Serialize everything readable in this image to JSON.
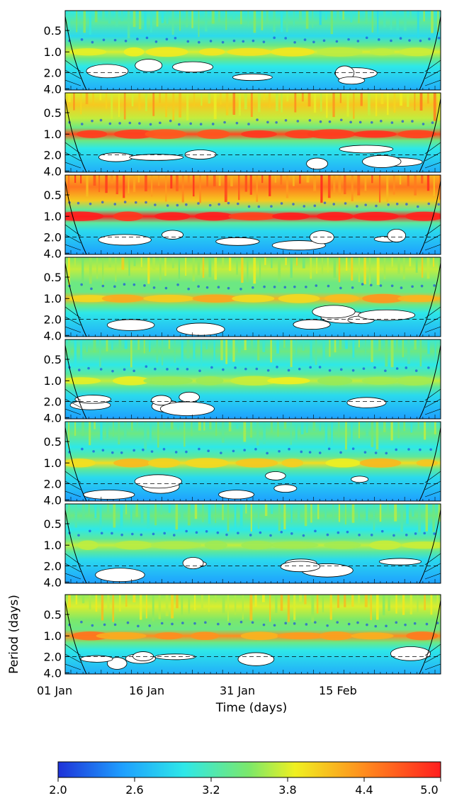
{
  "chart_data": {
    "type": "heatmap",
    "title": "",
    "xlabel": "Time (days)",
    "ylabel": "Period (days)",
    "x_ticks": [
      "01 Jan",
      "16 Jan",
      "31 Jan",
      "15 Feb"
    ],
    "y_ticks": [
      "0.5",
      "1.0",
      "2.0",
      "4.0"
    ],
    "y_scale": "log",
    "colorbar": {
      "ticks": [
        "2.0",
        "2.6",
        "3.2",
        "3.8",
        "4.4",
        "5.0"
      ],
      "range": [
        2.0,
        5.0
      ],
      "colors": [
        "#1e32d8",
        "#1ea0ff",
        "#2ee8e8",
        "#7ce86a",
        "#f0f020",
        "#ff8c1e",
        "#ff1e1e"
      ]
    },
    "panels": [
      {
        "daily_band_level": 3.9,
        "subdaily_level": 3.3,
        "background_level": 3.0
      },
      {
        "daily_band_level": 4.8,
        "subdaily_level": 4.2,
        "background_level": 3.0
      },
      {
        "daily_band_level": 5.0,
        "subdaily_level": 4.6,
        "background_level": 2.9
      },
      {
        "daily_band_level": 4.3,
        "subdaily_level": 3.8,
        "background_level": 3.0
      },
      {
        "daily_band_level": 3.8,
        "subdaily_level": 3.4,
        "background_level": 2.9
      },
      {
        "daily_band_level": 4.1,
        "subdaily_level": 3.4,
        "background_level": 2.9
      },
      {
        "daily_band_level": 3.8,
        "subdaily_level": 3.4,
        "background_level": 2.9
      },
      {
        "daily_band_level": 4.5,
        "subdaily_level": 3.9,
        "background_level": 3.0
      }
    ]
  }
}
